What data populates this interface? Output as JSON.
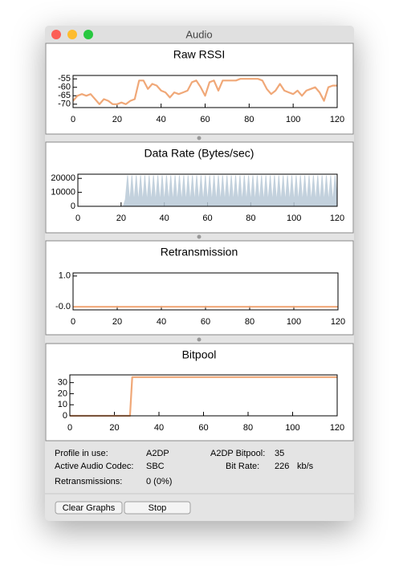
{
  "window": {
    "title": "Audio"
  },
  "chart_data": [
    {
      "type": "line",
      "title": "Raw RSSI",
      "color": "#f0a878",
      "x": [
        0,
        2,
        4,
        6,
        8,
        10,
        12,
        14,
        16,
        18,
        20,
        22,
        24,
        26,
        28,
        30,
        32,
        34,
        36,
        38,
        40,
        42,
        44,
        46,
        48,
        50,
        52,
        54,
        56,
        58,
        60,
        62,
        64,
        66,
        68,
        70,
        72,
        74,
        76,
        78,
        80,
        82,
        84,
        86,
        88,
        90,
        92,
        94,
        96,
        98,
        100,
        102,
        104,
        106,
        108,
        110,
        112,
        114,
        116,
        118,
        120
      ],
      "values": [
        -68,
        -65,
        -64,
        -65,
        -64,
        -67,
        -70,
        -67,
        -68,
        -70,
        -70,
        -69,
        -70,
        -68,
        -67,
        -56,
        -56,
        -61,
        -58,
        -59,
        -62,
        -63,
        -66,
        -63,
        -64,
        -63,
        -62,
        -57,
        -56,
        -60,
        -65,
        -57,
        -56,
        -62,
        -56,
        -56,
        -56,
        -56,
        -55,
        -55,
        -55,
        -55,
        -55,
        -56,
        -61,
        -64,
        -62,
        -58,
        -62,
        -63,
        -64,
        -62,
        -65,
        -62,
        -61,
        -60,
        -63,
        -68,
        -60,
        -59,
        -59
      ],
      "xlim": [
        0,
        120
      ],
      "xticks": [
        0,
        20,
        40,
        60,
        80,
        100,
        120
      ],
      "ylim": [
        -72,
        -53
      ],
      "yticks": [
        -55,
        -60,
        -65,
        -70
      ]
    },
    {
      "type": "area",
      "title": "Data Rate (Bytes/sec)",
      "color": "#b9cad8",
      "x": [
        0,
        20,
        21,
        22,
        23,
        24,
        25,
        26,
        27,
        28,
        29,
        30,
        31,
        32,
        33,
        34,
        35,
        36,
        37,
        38,
        39,
        40,
        41,
        42,
        43,
        44,
        45,
        46,
        47,
        48,
        49,
        50,
        51,
        52,
        53,
        54,
        55,
        56,
        57,
        58,
        59,
        60,
        61,
        62,
        63,
        64,
        65,
        66,
        67,
        68,
        69,
        70,
        71,
        72,
        73,
        74,
        75,
        76,
        77,
        78,
        79,
        80,
        81,
        82,
        83,
        84,
        85,
        86,
        87,
        88,
        89,
        90,
        91,
        92,
        93,
        94,
        95,
        96,
        97,
        98,
        99,
        100,
        101,
        102,
        103,
        104,
        105,
        106,
        107,
        108,
        109,
        110,
        111,
        112,
        113,
        114,
        115,
        116,
        117,
        118,
        119,
        120
      ],
      "values": [
        0,
        0,
        0,
        5000,
        22000,
        3000,
        22000,
        3000,
        22000,
        3000,
        22000,
        3000,
        22000,
        3000,
        22000,
        3000,
        22000,
        3000,
        22000,
        3000,
        22000,
        3000,
        22000,
        3000,
        22000,
        3000,
        22000,
        3000,
        22000,
        3000,
        22000,
        3000,
        22000,
        3000,
        22000,
        3000,
        22000,
        3000,
        22000,
        3000,
        22000,
        3000,
        22000,
        3000,
        22000,
        3000,
        22000,
        3000,
        22000,
        3000,
        22000,
        3000,
        22000,
        3000,
        22000,
        3000,
        22000,
        3000,
        22000,
        3000,
        22000,
        3000,
        22000,
        3000,
        22000,
        3000,
        22000,
        3000,
        22000,
        3000,
        22000,
        3000,
        22000,
        3000,
        22000,
        3000,
        22000,
        3000,
        22000,
        3000,
        22000,
        3000,
        22000,
        3000,
        22000,
        3000,
        22000,
        3000,
        22000,
        3000,
        22000,
        3000,
        22000,
        3000,
        22000,
        3000,
        22000,
        3000,
        22000,
        3000,
        22000,
        5000
      ],
      "xlim": [
        0,
        120
      ],
      "xticks": [
        0,
        20,
        40,
        60,
        80,
        100,
        120
      ],
      "ylim": [
        0,
        23000
      ],
      "yticks": [
        0,
        10000,
        20000
      ]
    },
    {
      "type": "line",
      "title": "Retransmission",
      "color": "#f0a878",
      "x": [
        0,
        120
      ],
      "values": [
        0,
        0
      ],
      "xlim": [
        0,
        120
      ],
      "xticks": [
        0,
        20,
        40,
        60,
        80,
        100,
        120
      ],
      "ylim": [
        -0.1,
        1.1
      ],
      "yticks": [
        {
          "value": 1,
          "label": "1.0"
        },
        {
          "value": 0,
          "label": "-0.0"
        }
      ]
    },
    {
      "type": "line",
      "title": "Bitpool",
      "color": "#f0a878",
      "x": [
        0,
        27,
        28,
        120
      ],
      "values": [
        0,
        0,
        35,
        35
      ],
      "xlim": [
        0,
        120
      ],
      "xticks": [
        0,
        20,
        40,
        60,
        80,
        100,
        120
      ],
      "ylim": [
        0,
        37
      ],
      "yticks": [
        0,
        10,
        20,
        30
      ]
    }
  ],
  "info": {
    "profile_label": "Profile in use:",
    "profile": "A2DP",
    "codec_label": "Active Audio Codec:",
    "codec": "SBC",
    "retrans_label": "Retransmissions:",
    "retrans": "0 (0%)",
    "bitpool_label": "A2DP Bitpool:",
    "bitpool": "35",
    "bitrate_label": "Bit Rate:",
    "bitrate": "226",
    "bitrate_unit": "kb/s"
  },
  "buttons": [
    "Clear Graphs",
    "Stop"
  ]
}
